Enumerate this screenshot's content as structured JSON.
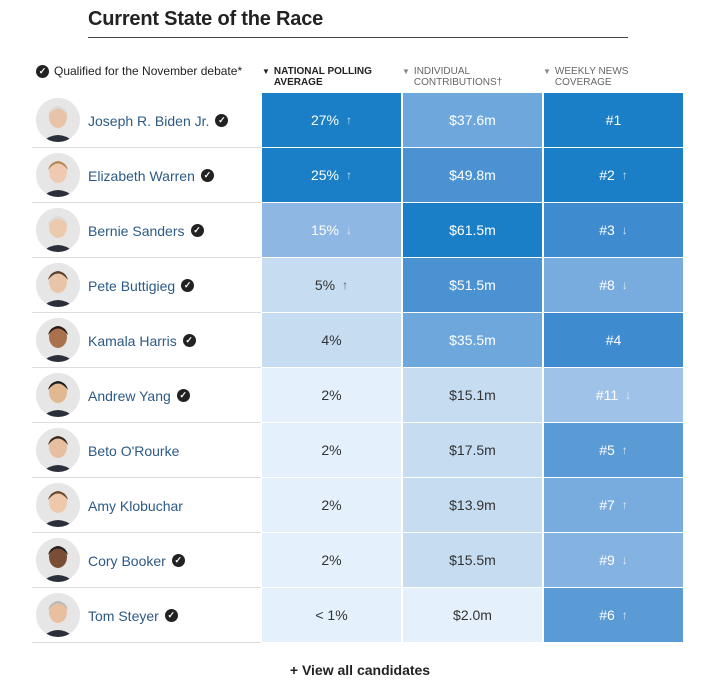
{
  "title": "Current State of the Race",
  "legend": "Qualified for the November debate*",
  "columns": [
    {
      "key": "polling",
      "line1": "National Polling",
      "line2": "Average",
      "sorted": true
    },
    {
      "key": "contributions",
      "line1": "Individual",
      "line2": "Contributions†",
      "sorted": false
    },
    {
      "key": "news",
      "line1": "Weekly News",
      "line2": "Coverage",
      "sorted": false
    }
  ],
  "view_all": "+ View all candidates",
  "colors": {
    "accent": "#1a7fc6",
    "dark_blue": "#2a86cc",
    "mid_blue": "#5b9bd5",
    "light_mid": "#8fb7e3",
    "light": "#c5dcf1",
    "pale": "#e4f0fb",
    "name_link": "#2c5a86"
  },
  "chart_data": {
    "type": "table",
    "rows": [
      {
        "name": "Joseph R. Biden Jr.",
        "qualified": true,
        "polling": "27%",
        "polling_trend": "up",
        "contributions": "$37.6m",
        "contributions_trend": "none",
        "news": "#1",
        "news_trend": "none"
      },
      {
        "name": "Elizabeth Warren",
        "qualified": true,
        "polling": "25%",
        "polling_trend": "up",
        "contributions": "$49.8m",
        "contributions_trend": "none",
        "news": "#2",
        "news_trend": "up"
      },
      {
        "name": "Bernie Sanders",
        "qualified": true,
        "polling": "15%",
        "polling_trend": "down",
        "contributions": "$61.5m",
        "contributions_trend": "none",
        "news": "#3",
        "news_trend": "down"
      },
      {
        "name": "Pete Buttigieg",
        "qualified": true,
        "polling": "5%",
        "polling_trend": "up",
        "contributions": "$51.5m",
        "contributions_trend": "none",
        "news": "#8",
        "news_trend": "down"
      },
      {
        "name": "Kamala Harris",
        "qualified": true,
        "polling": "4%",
        "polling_trend": "none",
        "contributions": "$35.5m",
        "contributions_trend": "none",
        "news": "#4",
        "news_trend": "none"
      },
      {
        "name": "Andrew Yang",
        "qualified": true,
        "polling": "2%",
        "polling_trend": "none",
        "contributions": "$15.1m",
        "contributions_trend": "none",
        "news": "#11",
        "news_trend": "down"
      },
      {
        "name": "Beto O'Rourke",
        "qualified": false,
        "polling": "2%",
        "polling_trend": "none",
        "contributions": "$17.5m",
        "contributions_trend": "none",
        "news": "#5",
        "news_trend": "up"
      },
      {
        "name": "Amy Klobuchar",
        "qualified": false,
        "polling": "2%",
        "polling_trend": "none",
        "contributions": "$13.9m",
        "contributions_trend": "none",
        "news": "#7",
        "news_trend": "up"
      },
      {
        "name": "Cory Booker",
        "qualified": true,
        "polling": "2%",
        "polling_trend": "none",
        "contributions": "$15.5m",
        "contributions_trend": "none",
        "news": "#9",
        "news_trend": "down"
      },
      {
        "name": "Tom Steyer",
        "qualified": true,
        "polling": "< 1%",
        "polling_trend": "none",
        "contributions": "$2.0m",
        "contributions_trend": "none",
        "news": "#6",
        "news_trend": "up"
      }
    ]
  }
}
